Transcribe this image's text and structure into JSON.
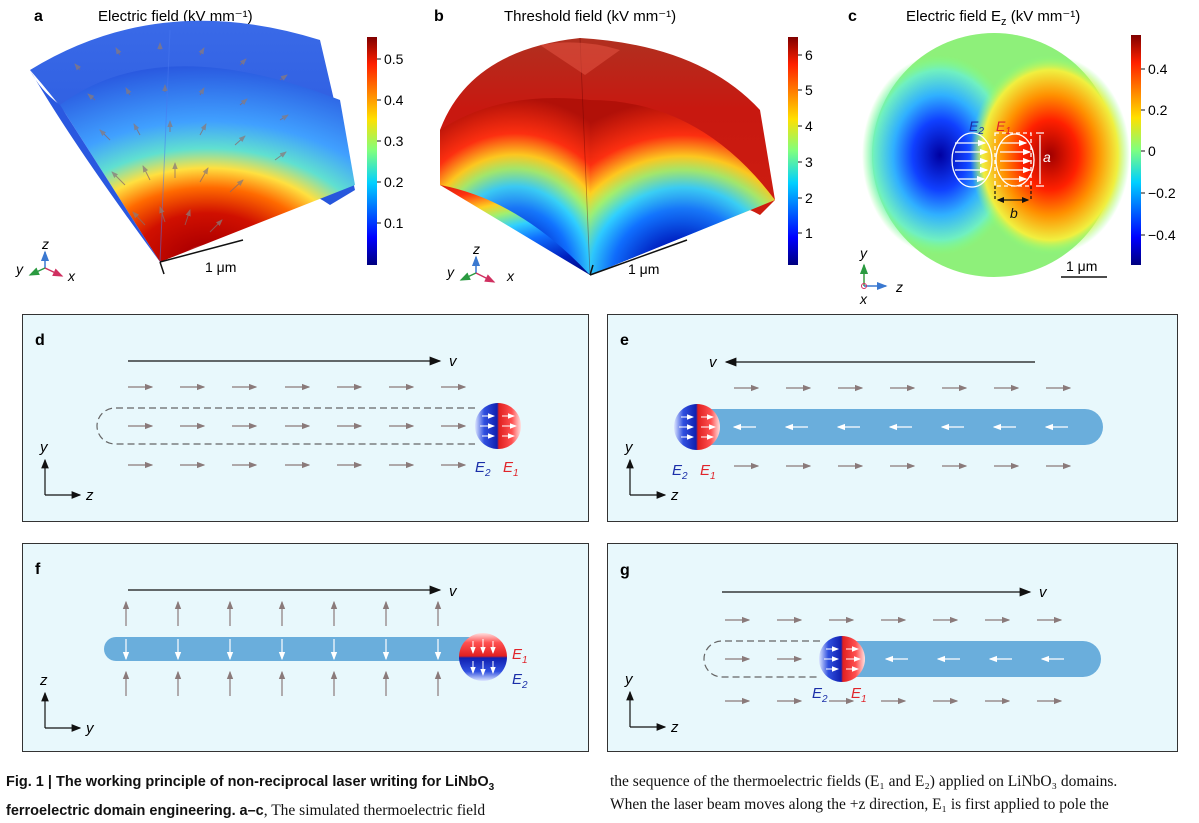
{
  "panels": {
    "a": {
      "letter": "a",
      "title": "Electric field (kV mm⁻¹)",
      "scale": "1 μm",
      "ticks": [
        "0.5",
        "0.4",
        "0.3",
        "0.2",
        "0.1"
      ],
      "axes": {
        "y": "y",
        "z": "z",
        "x": "x"
      }
    },
    "b": {
      "letter": "b",
      "title": "Threshold field (kV mm⁻¹)",
      "scale": "1 μm",
      "ticks": [
        "6",
        "5",
        "4",
        "3",
        "2",
        "1"
      ],
      "axes": {
        "y": "y",
        "z": "z",
        "x": "x"
      }
    },
    "c": {
      "letter": "c",
      "title": "Electric field E",
      "title_sub": "z",
      "title_tail": " (kV mm⁻¹)",
      "scale": "1 μm",
      "ticks": [
        "0.4",
        "0.2",
        "0",
        "−0.2",
        "−0.4"
      ],
      "e2": "E",
      "e2_sub": "2",
      "e1": "E",
      "e1_sub": "1",
      "a": "a",
      "b": "b",
      "axes": {
        "y": "y",
        "z": "z",
        "x": "x"
      }
    },
    "d": {
      "letter": "d",
      "v": "v",
      "e2": "E",
      "e2_sub": "2",
      "e1": "E",
      "e1_sub": "1",
      "axes": {
        "y": "y",
        "z": "z"
      }
    },
    "e": {
      "letter": "e",
      "v": "v",
      "e2": "E",
      "e2_sub": "2",
      "e1": "E",
      "e1_sub": "1",
      "axes": {
        "y": "y",
        "z": "z"
      }
    },
    "f": {
      "letter": "f",
      "v": "v",
      "e2": "E",
      "e2_sub": "2",
      "e1": "E",
      "e1_sub": "1",
      "axes": {
        "z": "z",
        "y": "y"
      }
    },
    "g": {
      "letter": "g",
      "v": "v",
      "e2": "E",
      "e2_sub": "2",
      "e1": "E",
      "e1_sub": "1",
      "axes": {
        "y": "y",
        "z": "z"
      }
    }
  },
  "caption": {
    "left_bold_1": "Fig. 1 | The working principle of non-reciprocal laser writing for LiNbO",
    "left_bold_sub": "3",
    "left_bold_2": "ferroelectric domain engineering.",
    "left_bold_3": "a–c",
    "left_rest": ", The simulated thermoelectric field",
    "right_line1": "the sequence of the thermoelectric fields (E₁ and E₂) applied on LiNbO₃ domains.",
    "right_line2": "When the laser beam moves along the +z direction, E₁ is first applied to pole the"
  },
  "colors": {
    "panel_bg": "#e8f8fc",
    "panel_border": "#333333",
    "track": "#6aaedc",
    "e1_red": "#e0242a",
    "e2_blue": "#1a2ea8"
  }
}
